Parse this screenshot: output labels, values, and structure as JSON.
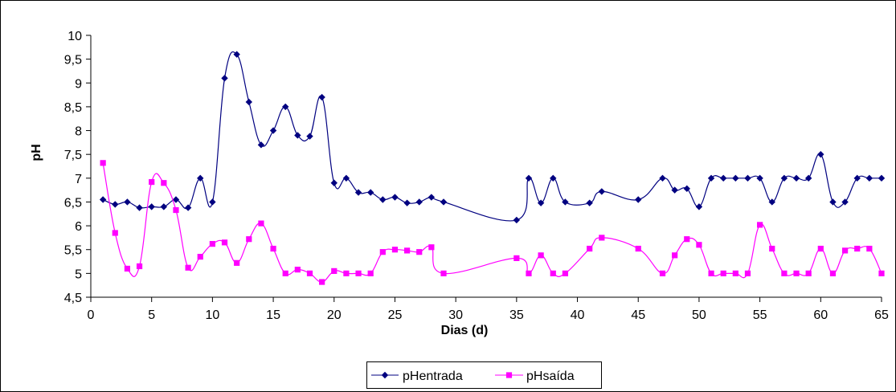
{
  "chart_data": {
    "type": "line",
    "title": "",
    "xlabel": "Dias (d)",
    "ylabel": "pH",
    "xlim": [
      0,
      65
    ],
    "ylim": [
      4.5,
      10
    ],
    "xticks": [
      0,
      5,
      10,
      15,
      20,
      25,
      30,
      35,
      40,
      45,
      50,
      55,
      60,
      65
    ],
    "xtick_labels": [
      "0",
      "5",
      "10",
      "15",
      "20",
      "25",
      "30",
      "35",
      "40",
      "45",
      "50",
      "55",
      "60",
      "65"
    ],
    "yticks": [
      4.5,
      5,
      5.5,
      6,
      6.5,
      7,
      7.5,
      8,
      8.5,
      9,
      9.5,
      10
    ],
    "ytick_labels": [
      "4,5",
      "5",
      "5,5",
      "6",
      "6,5",
      "7",
      "7,5",
      "8",
      "8,5",
      "9",
      "9,5",
      "10"
    ],
    "grid": false,
    "legend_position": "bottom-center",
    "series": [
      {
        "name": "pHentrada",
        "color": "#000080",
        "marker": "diamond",
        "x": [
          1,
          2,
          3,
          4,
          5,
          6,
          7,
          8,
          9,
          10,
          11,
          12,
          13,
          14,
          15,
          16,
          17,
          18,
          19,
          20,
          21,
          22,
          23,
          24,
          25,
          26,
          27,
          28,
          29,
          35,
          36,
          37,
          38,
          39,
          41,
          42,
          45,
          47,
          48,
          49,
          50,
          51,
          52,
          53,
          54,
          55,
          56,
          57,
          58,
          59,
          60,
          61,
          62,
          63,
          64,
          65
        ],
        "y": [
          6.55,
          6.45,
          6.5,
          6.38,
          6.4,
          6.4,
          6.55,
          6.38,
          7.0,
          6.5,
          9.1,
          9.6,
          8.6,
          7.7,
          8.0,
          8.5,
          7.9,
          7.88,
          8.7,
          6.9,
          7.0,
          6.7,
          6.7,
          6.55,
          6.6,
          6.48,
          6.5,
          6.6,
          6.5,
          6.12,
          7.0,
          6.48,
          7.0,
          6.5,
          6.48,
          6.72,
          6.55,
          7.0,
          6.75,
          6.78,
          6.4,
          7.0,
          7.0,
          7.0,
          7.0,
          7.0,
          6.5,
          7.0,
          7.0,
          7.0,
          7.5,
          6.5,
          6.5,
          7.0,
          7.0,
          7.0
        ]
      },
      {
        "name": "pHsaída",
        "color": "#ff00ff",
        "marker": "square",
        "x": [
          1,
          2,
          3,
          4,
          5,
          6,
          7,
          8,
          9,
          10,
          11,
          12,
          13,
          14,
          15,
          16,
          17,
          18,
          19,
          20,
          21,
          22,
          23,
          24,
          25,
          26,
          27,
          28,
          29,
          35,
          36,
          37,
          38,
          39,
          41,
          42,
          45,
          47,
          48,
          49,
          50,
          51,
          52,
          53,
          54,
          55,
          56,
          57,
          58,
          59,
          60,
          61,
          62,
          63,
          64,
          65
        ],
        "y": [
          7.32,
          5.85,
          5.1,
          5.15,
          6.92,
          6.9,
          6.33,
          5.12,
          5.35,
          5.62,
          5.65,
          5.22,
          5.72,
          6.05,
          5.52,
          5.0,
          5.08,
          5.0,
          4.82,
          5.05,
          5.0,
          5.0,
          5.0,
          5.45,
          5.5,
          5.48,
          5.45,
          5.55,
          5.0,
          5.32,
          5.0,
          5.38,
          5.0,
          5.0,
          5.52,
          5.75,
          5.52,
          5.0,
          5.38,
          5.72,
          5.6,
          5.0,
          5.0,
          5.0,
          5.0,
          6.02,
          5.52,
          5.0,
          5.0,
          5.0,
          5.52,
          5.0,
          5.48,
          5.52,
          5.52,
          5.0
        ]
      }
    ]
  }
}
